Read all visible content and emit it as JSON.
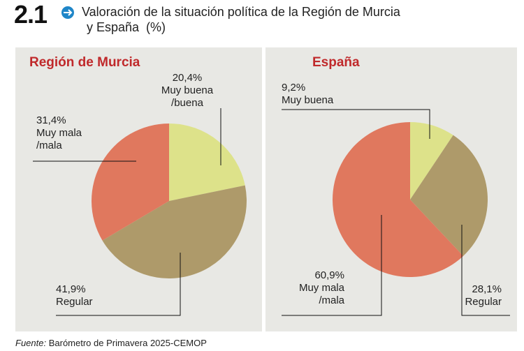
{
  "figure_number": "2.1",
  "title": [
    "Valoración de la situación política de la Región de Murcia",
    "y España  (%)"
  ],
  "source_label": "Fuente:",
  "source": "Barómetro de Primavera 2025-CEMOP",
  "chart_data": [
    {
      "type": "pie",
      "title": "Región de Murcia",
      "categories": [
        "Muy buena /buena",
        "Regular",
        "Muy mala /mala"
      ],
      "values": [
        20.4,
        41.9,
        31.4
      ],
      "value_labels": [
        "20,4%",
        "41,9%",
        "31,4%"
      ],
      "colors": [
        "#dde28a",
        "#ae9a6a",
        "#e0785e"
      ]
    },
    {
      "type": "pie",
      "title": "España",
      "categories": [
        "Muy buena",
        "Regular",
        "Muy mala /mala"
      ],
      "values": [
        9.2,
        28.1,
        60.9
      ],
      "value_labels": [
        "9,2%",
        "28,1%",
        "60,9%"
      ],
      "colors": [
        "#dde28a",
        "#ae9a6a",
        "#e0785e"
      ]
    }
  ]
}
